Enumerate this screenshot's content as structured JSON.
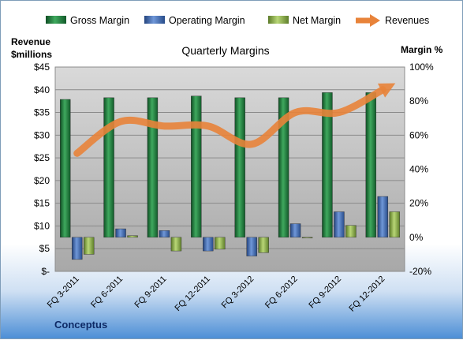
{
  "legend": [
    {
      "label": "Gross Margin",
      "icon": "bar-swatch",
      "color": "#1e7a3a"
    },
    {
      "label": "Operating Margin",
      "icon": "bar-swatch",
      "color": "#3f66b0"
    },
    {
      "label": "Net Margin",
      "icon": "bar-swatch",
      "color": "#8ab04a"
    },
    {
      "label": "Revenues",
      "icon": "arrow-swatch",
      "color": "#e8833a"
    }
  ],
  "left_axis_title_line1": "Revenue",
  "left_axis_title_line2": "$millions",
  "right_axis_title": "Margin %",
  "footer": "Conceptus",
  "chart_data": {
    "type": "bar",
    "title": "Quarterly Margins",
    "categories": [
      "FQ 3-2011",
      "FQ 6-2011",
      "FQ 9-2011",
      "FQ 12-2011",
      "FQ 3-2012",
      "FQ 6-2012",
      "FQ 9-2012",
      "FQ 12-2012"
    ],
    "left_axis": {
      "label": "Revenue $millions",
      "ylim": [
        0,
        45
      ],
      "ticks": [
        "$-",
        "$5",
        "$10",
        "$15",
        "$20",
        "$25",
        "$30",
        "$35",
        "$40",
        "$45"
      ]
    },
    "right_axis": {
      "label": "Margin %",
      "ylim": [
        -20,
        100
      ],
      "ticks": [
        "-20%",
        "0%",
        "20%",
        "40%",
        "60%",
        "80%",
        "100%"
      ]
    },
    "series": [
      {
        "name": "Gross Margin",
        "axis": "right",
        "type": "bar",
        "color": "#1e7a3a",
        "values": [
          81,
          82,
          82,
          83,
          82,
          82,
          85,
          85
        ]
      },
      {
        "name": "Operating Margin",
        "axis": "right",
        "type": "bar",
        "color": "#3f66b0",
        "values": [
          -13,
          5,
          4,
          -8,
          -11,
          8,
          15,
          24
        ]
      },
      {
        "name": "Net Margin",
        "axis": "right",
        "type": "bar",
        "color": "#8ab04a",
        "values": [
          -10,
          1,
          -8,
          -7,
          -9,
          0,
          7,
          15
        ]
      },
      {
        "name": "Revenues",
        "axis": "left",
        "type": "line",
        "color": "#e8833a",
        "values": [
          26,
          33,
          32,
          32,
          28,
          35,
          35,
          40
        ]
      }
    ],
    "grid": true,
    "legend_position": "top"
  }
}
